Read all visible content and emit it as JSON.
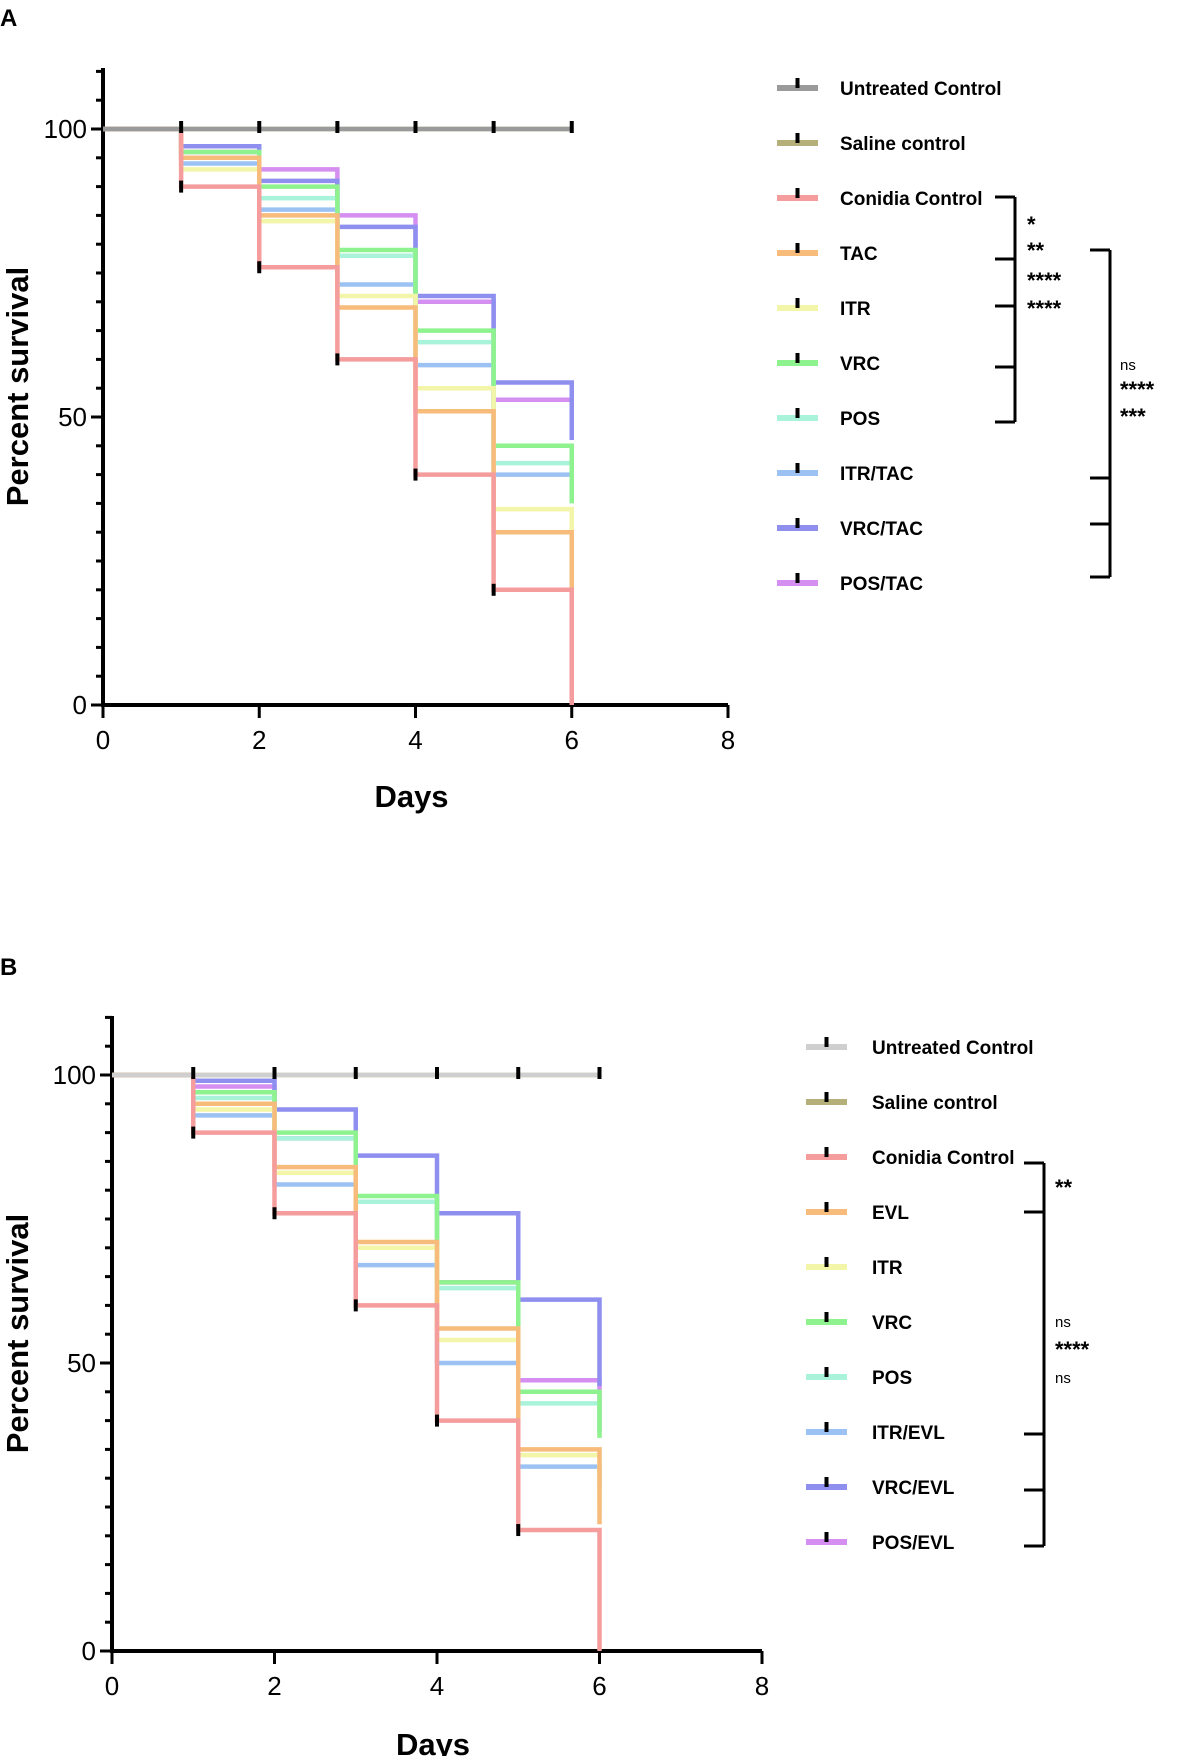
{
  "chart_data": [
    {
      "type": "line",
      "panel": "A",
      "xlabel": "Days",
      "ylabel": "Percent survival",
      "xlim": [
        0,
        8
      ],
      "ylim": [
        0,
        110
      ],
      "xticks": [
        "0",
        "2",
        "4",
        "6",
        "8"
      ],
      "yticks": [
        "0",
        "50",
        "100"
      ],
      "series": [
        {
          "name": "Untreated Control",
          "color": "#9a9a9a",
          "x": [
            0,
            1,
            2,
            3,
            4,
            5,
            6
          ],
          "y": [
            100,
            100,
            100,
            100,
            100,
            100,
            100
          ]
        },
        {
          "name": "Saline control",
          "color": "#b5b07a",
          "x": [
            0,
            1,
            2,
            3,
            4,
            5,
            6
          ],
          "y": [
            100,
            100,
            100,
            100,
            100,
            100,
            100
          ]
        },
        {
          "name": "Conidia Control",
          "color": "#f59d9d",
          "x": [
            0,
            1,
            2,
            3,
            4,
            5,
            6
          ],
          "y": [
            100,
            90,
            76,
            60,
            40,
            20,
            0
          ]
        },
        {
          "name": "TAC",
          "color": "#f7bc7c",
          "x": [
            0,
            1,
            2,
            3,
            4,
            5,
            6
          ],
          "y": [
            100,
            95,
            85,
            69,
            51,
            30,
            20
          ]
        },
        {
          "name": "ITR",
          "color": "#f3f5a9",
          "x": [
            0,
            1,
            2,
            3,
            4,
            5,
            6
          ],
          "y": [
            100,
            93,
            84,
            71,
            55,
            34,
            30
          ]
        },
        {
          "name": "VRC",
          "color": "#8ef28e",
          "x": [
            0,
            1,
            2,
            3,
            4,
            5,
            6
          ],
          "y": [
            100,
            96,
            90,
            79,
            65,
            45,
            35
          ]
        },
        {
          "name": "POS",
          "color": "#a8f3d9",
          "x": [
            0,
            1,
            2,
            3,
            4,
            5,
            6
          ],
          "y": [
            100,
            95,
            88,
            78,
            63,
            42,
            36
          ]
        },
        {
          "name": "ITR/TAC",
          "color": "#9cc2f3",
          "x": [
            0,
            1,
            2,
            3,
            4,
            5,
            6
          ],
          "y": [
            100,
            94,
            86,
            73,
            59,
            40,
            36
          ]
        },
        {
          "name": "VRC/TAC",
          "color": "#8f8ff0",
          "x": [
            0,
            1,
            2,
            3,
            4,
            5,
            6
          ],
          "y": [
            100,
            97,
            91,
            83,
            71,
            56,
            46
          ]
        },
        {
          "name": "POS/TAC",
          "color": "#d48ff0",
          "x": [
            0,
            1,
            2,
            3,
            4,
            5,
            6
          ],
          "y": [
            100,
            96,
            93,
            85,
            70,
            53,
            46
          ]
        }
      ],
      "legend": [
        "Untreated Control",
        "Saline control",
        "Conidia Control",
        "TAC",
        "ITR",
        "VRC",
        "POS",
        "ITR/TAC",
        "VRC/TAC",
        "POS/TAC"
      ],
      "significance": {
        "inner": [
          "*",
          "**",
          "****",
          "****"
        ],
        "outer": [
          "ns",
          "****",
          "***"
        ]
      }
    },
    {
      "type": "line",
      "panel": "B",
      "xlabel": "Days",
      "ylabel": "Percent survival",
      "xlim": [
        0,
        8
      ],
      "ylim": [
        0,
        110
      ],
      "xticks": [
        "0",
        "2",
        "4",
        "6",
        "8"
      ],
      "yticks": [
        "0",
        "50",
        "100"
      ],
      "series": [
        {
          "name": "Untreated Control",
          "color": "#cfcfcf",
          "x": [
            0,
            1,
            2,
            3,
            4,
            5,
            6
          ],
          "y": [
            100,
            100,
            100,
            100,
            100,
            100,
            100
          ]
        },
        {
          "name": "Saline control",
          "color": "#b5b07a",
          "x": [
            0,
            1,
            2,
            3,
            4,
            5,
            6
          ],
          "y": [
            100,
            100,
            100,
            100,
            100,
            100,
            100
          ]
        },
        {
          "name": "Conidia Control",
          "color": "#f59d9d",
          "x": [
            0,
            1,
            2,
            3,
            4,
            5,
            6
          ],
          "y": [
            100,
            90,
            76,
            60,
            40,
            21,
            0
          ]
        },
        {
          "name": "EVL",
          "color": "#f7bc7c",
          "x": [
            0,
            1,
            2,
            3,
            4,
            5,
            6
          ],
          "y": [
            100,
            95,
            84,
            71,
            56,
            35,
            22
          ]
        },
        {
          "name": "ITR",
          "color": "#f3f5a9",
          "x": [
            0,
            1,
            2,
            3,
            4,
            5,
            6
          ],
          "y": [
            100,
            94,
            83,
            70,
            54,
            34,
            25
          ]
        },
        {
          "name": "VRC",
          "color": "#8ef28e",
          "x": [
            0,
            1,
            2,
            3,
            4,
            5,
            6
          ],
          "y": [
            100,
            97,
            90,
            79,
            64,
            45,
            37
          ]
        },
        {
          "name": "POS",
          "color": "#a8f3d9",
          "x": [
            0,
            1,
            2,
            3,
            4,
            5,
            6
          ],
          "y": [
            100,
            96,
            89,
            78,
            63,
            43,
            38
          ]
        },
        {
          "name": "ITR/EVL",
          "color": "#9cc2f3",
          "x": [
            0,
            1,
            2,
            3,
            4,
            5,
            6
          ],
          "y": [
            100,
            93,
            81,
            67,
            50,
            32,
            28
          ]
        },
        {
          "name": "VRC/EVL",
          "color": "#8f8ff0",
          "x": [
            0,
            1,
            2,
            3,
            4,
            5,
            6
          ],
          "y": [
            100,
            99,
            94,
            86,
            76,
            61,
            46
          ]
        },
        {
          "name": "POS/EVL",
          "color": "#d48ff0",
          "x": [
            0,
            1,
            2,
            3,
            4,
            5,
            6
          ],
          "y": [
            100,
            98,
            89,
            78,
            64,
            47,
            38
          ]
        }
      ],
      "legend": [
        "Untreated Control",
        "Saline control",
        "Conidia Control",
        "EVL",
        "ITR",
        "VRC",
        "POS",
        "ITR/EVL",
        "VRC/EVL",
        "POS/EVL"
      ],
      "significance": {
        "inner": [
          "**"
        ],
        "outer": [
          "ns",
          "****",
          "ns"
        ]
      }
    }
  ]
}
